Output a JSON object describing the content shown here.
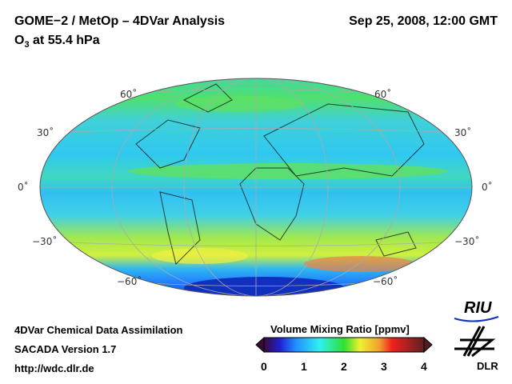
{
  "header": {
    "title": "GOME−2 / MetOp – 4DVar Analysis",
    "datetime": "Sep 25, 2008, 12:00 GMT",
    "species": "O",
    "species_sub": "3",
    "level": " at 55.4 hPa"
  },
  "map": {
    "projection": "Hammer/Mollweide global",
    "lat_labels": {
      "n60": "60˚",
      "n30": "30˚",
      "eq": "0˚",
      "s30": "−30˚",
      "s60": "−60˚"
    }
  },
  "footer": {
    "line1": "4DVar Chemical Data Assimilation",
    "line2": "SACADA Version 1.7",
    "line3": "http://wdc.dlr.de"
  },
  "colorbar": {
    "title": "Volume Mixing Ratio [ppmv]",
    "ticks": [
      "0",
      "1",
      "2",
      "3",
      "4"
    ],
    "min": 0,
    "max": 4,
    "colors": [
      "#3a0a3a",
      "#2020d0",
      "#2090ff",
      "#30f0f0",
      "#30e030",
      "#f0f030",
      "#f0a030",
      "#f02020",
      "#602020"
    ]
  },
  "logos": {
    "riu": "RIU",
    "dlr": "DLR"
  }
}
